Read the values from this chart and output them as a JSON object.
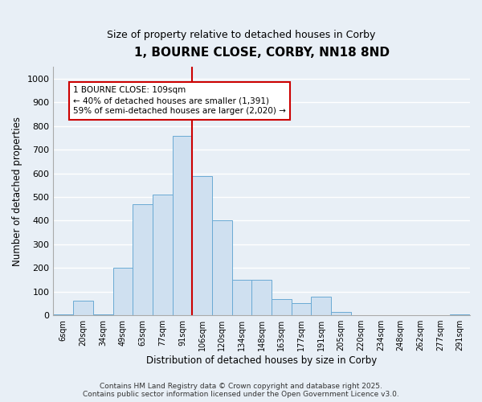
{
  "title": "1, BOURNE CLOSE, CORBY, NN18 8ND",
  "subtitle": "Size of property relative to detached houses in Corby",
  "xlabel": "Distribution of detached houses by size in Corby",
  "ylabel": "Number of detached properties",
  "bar_color": "#cfe0f0",
  "bar_edge_color": "#6aaad4",
  "categories": [
    "6sqm",
    "20sqm",
    "34sqm",
    "49sqm",
    "63sqm",
    "77sqm",
    "91sqm",
    "106sqm",
    "120sqm",
    "134sqm",
    "148sqm",
    "163sqm",
    "177sqm",
    "191sqm",
    "205sqm",
    "220sqm",
    "234sqm",
    "248sqm",
    "262sqm",
    "277sqm",
    "291sqm"
  ],
  "values": [
    5,
    60,
    5,
    200,
    470,
    510,
    760,
    590,
    400,
    150,
    150,
    70,
    50,
    80,
    15,
    0,
    0,
    0,
    0,
    0,
    5
  ],
  "ylim": [
    0,
    1050
  ],
  "yticks": [
    0,
    100,
    200,
    300,
    400,
    500,
    600,
    700,
    800,
    900,
    1000
  ],
  "vline_index": 7,
  "vline_color": "#cc0000",
  "annotation_title": "1 BOURNE CLOSE: 109sqm",
  "annotation_line1": "← 40% of detached houses are smaller (1,391)",
  "annotation_line2": "59% of semi-detached houses are larger (2,020) →",
  "annotation_box_facecolor": "#ffffff",
  "annotation_box_edgecolor": "#cc0000",
  "footer_line1": "Contains HM Land Registry data © Crown copyright and database right 2025.",
  "footer_line2": "Contains public sector information licensed under the Open Government Licence v3.0.",
  "background_color": "#e8eff6",
  "grid_color": "#ffffff",
  "grid_linewidth": 1.0,
  "spine_color": "#aaaaaa"
}
